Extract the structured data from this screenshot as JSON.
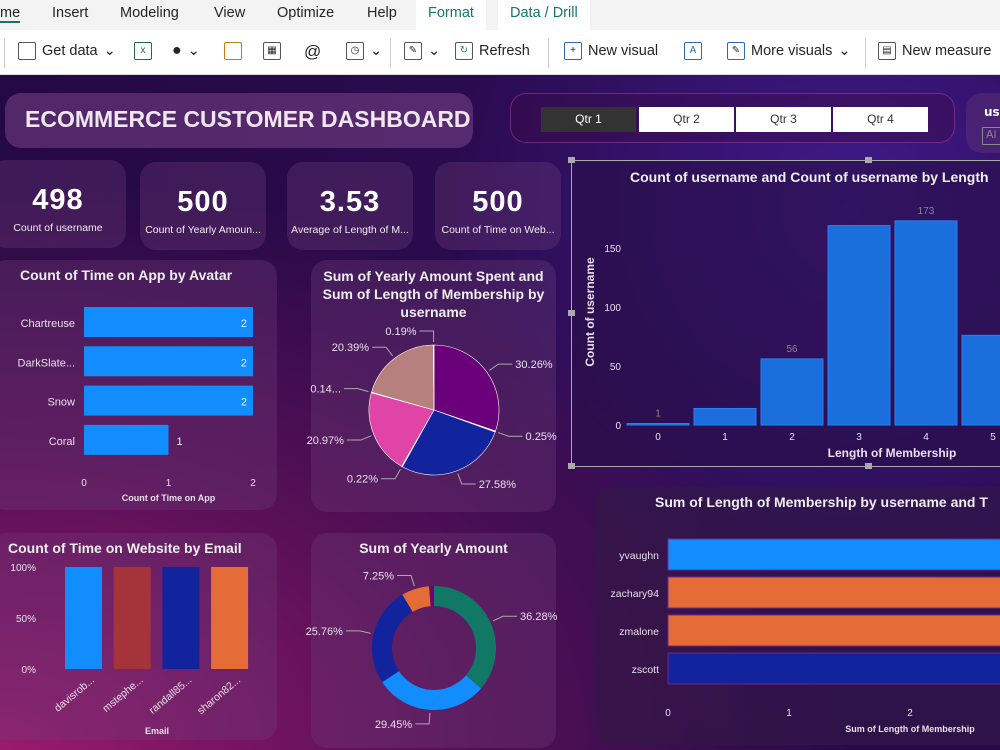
{
  "menu_tabs": [
    "me",
    "Insert",
    "Modeling",
    "View",
    "Optimize",
    "Help",
    "Format",
    "Data / Drill"
  ],
  "ribbon": {
    "get_data": "Get data",
    "refresh": "Refresh",
    "new_visual": "New visual",
    "more_visuals": "More visuals",
    "new_measure": "New measure"
  },
  "dashboard_title": "ECOMMERCE CUSTOMER DASHBOARD",
  "quarters": [
    "Qtr 1",
    "Qtr 2",
    "Qtr 3",
    "Qtr 4"
  ],
  "selected_quarter": "Qtr 1",
  "partial_slicer": {
    "title": "us",
    "value": "Al"
  },
  "kpis": [
    {
      "value": "498",
      "label": "Count of username"
    },
    {
      "value": "500",
      "label": "Count of Yearly Amoun..."
    },
    {
      "value": "3.53",
      "label": "Average of Length of M..."
    },
    {
      "value": "500",
      "label": "Count of Time on Web..."
    }
  ],
  "colors": {
    "blue": "#118dff",
    "darkblue": "#12239e",
    "orange": "#e66c37",
    "red": "#a4343a",
    "green": "#117865",
    "purple": "#6b007b",
    "pink": "#e044a7",
    "tan": "#b6807e"
  },
  "chart_data": [
    {
      "id": "avatar",
      "type": "bar",
      "title": "Count of Time on App by Avatar",
      "categories": [
        "Chartreuse",
        "DarkSlate...",
        "Snow",
        "Coral"
      ],
      "values": [
        2,
        2,
        2,
        1
      ],
      "xlabel": "Count of Time on App",
      "xticks": [
        "0",
        "1",
        "2"
      ],
      "xlim": [
        0,
        2
      ]
    },
    {
      "id": "pie",
      "type": "pie",
      "title": "Sum of Yearly Amount Spent and Sum of Length of Membership by username",
      "values": [
        30.26,
        0.25,
        27.58,
        0.22,
        20.97,
        0.14,
        20.39,
        0.19
      ],
      "labels": [
        "30.26%",
        "0.25%",
        "27.58%",
        "0.22%",
        "20.97%",
        "0.14...",
        "20.39%",
        "0.19%"
      ],
      "colors": [
        "#6b007b",
        "#eeeeee",
        "#12239e",
        "#eeeeee",
        "#e044a7",
        "#eeeeee",
        "#b6807e",
        "#eeeeee"
      ]
    },
    {
      "id": "column",
      "type": "bar",
      "title": "Count of username and Count of username by Length",
      "categories": [
        "0",
        "1",
        "2",
        "3",
        "4",
        "5"
      ],
      "values": [
        1,
        14,
        56,
        169,
        173,
        76
      ],
      "data_labels": [
        "1",
        "",
        "56",
        "",
        "173",
        ""
      ],
      "xlabel": "Length of Membership",
      "ylabel": "Count of username",
      "yticks": [
        "0",
        "50",
        "100",
        "150"
      ],
      "ylim": [
        0,
        180
      ]
    },
    {
      "id": "email",
      "type": "bar",
      "title": "Count of Time on Website by Email",
      "categories": [
        "davisrob...",
        "mstephe...",
        "randall85...",
        "sharon82..."
      ],
      "values": [
        100,
        100,
        100,
        100
      ],
      "colors": [
        "#118dff",
        "#a4343a",
        "#12239e",
        "#e66c37"
      ],
      "xlabel": "Email",
      "yticks": [
        "0%",
        "50%",
        "100%"
      ],
      "ylim": [
        0,
        100
      ]
    },
    {
      "id": "donut",
      "type": "pie",
      "title": "Sum of Yearly Amount",
      "values": [
        36.28,
        29.45,
        25.76,
        7.25,
        1.26
      ],
      "labels": [
        "36.28%",
        "29.45%",
        "25.76%",
        "7.25%",
        ""
      ],
      "colors": [
        "#117865",
        "#118dff",
        "#12239e",
        "#e66c37",
        "#6b007b"
      ]
    },
    {
      "id": "hbar",
      "type": "bar",
      "title": "Sum of Length of Membership by username and T",
      "categories": [
        "yvaughn",
        "zachary94",
        "zmalone",
        "zscott"
      ],
      "values": [
        3,
        3,
        3,
        3
      ],
      "colors": [
        "#118dff",
        "#e66c37",
        "#e66c37",
        "#12239e"
      ],
      "xlabel": "Sum of Length of Membership",
      "xticks": [
        "0",
        "1",
        "2"
      ]
    }
  ]
}
